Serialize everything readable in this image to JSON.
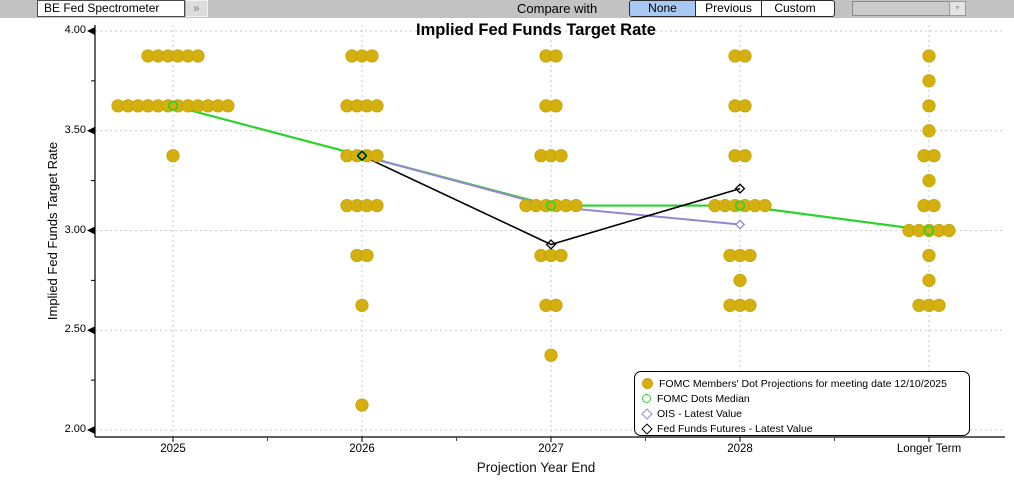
{
  "toolbar": {
    "app_button": "BE Fed Spectrometer",
    "expand_icon": "»",
    "compare_label": "Compare with",
    "compare_options": [
      "None",
      "Previous",
      "Custom"
    ],
    "compare_selected": "None",
    "compare_dropdown_value": "",
    "dropdown_arrow": "▼"
  },
  "chart_data": {
    "type": "scatter",
    "title": "Implied Fed Funds Target Rate",
    "xlabel": "Projection Year End",
    "ylabel": "Implied Fed Funds Target Rate",
    "ylim": [
      2.0,
      4.0
    ],
    "grid": "dotted major horizontal gridlines and dotted vertical category gridlines",
    "legend_position": "bottom-right inside plot",
    "categories": [
      "2025",
      "2026",
      "2027",
      "2028",
      "Longer Term"
    ],
    "y_axis": {
      "major": [
        {
          "label": "4.00",
          "value": 4.0
        },
        {
          "label": "3.50",
          "value": 3.5
        },
        {
          "label": "3.00",
          "value": 3.0
        },
        {
          "label": "2.50",
          "value": 2.5
        },
        {
          "label": "2.00",
          "value": 2.0
        }
      ],
      "minor": [
        3.75,
        3.25,
        2.75,
        2.25
      ]
    },
    "dot_columns": [
      {
        "category": "2025",
        "median": 3.625,
        "rows": [
          {
            "rate": 3.875,
            "count": 6
          },
          {
            "rate": 3.625,
            "count": 12
          },
          {
            "rate": 3.375,
            "count": 1
          }
        ]
      },
      {
        "category": "2026",
        "median": 3.375,
        "rows": [
          {
            "rate": 3.875,
            "count": 3
          },
          {
            "rate": 3.625,
            "count": 4
          },
          {
            "rate": 3.375,
            "count": 4
          },
          {
            "rate": 3.125,
            "count": 4
          },
          {
            "rate": 2.875,
            "count": 2
          },
          {
            "rate": 2.625,
            "count": 1
          },
          {
            "rate": 2.125,
            "count": 1
          }
        ]
      },
      {
        "category": "2027",
        "median": 3.125,
        "rows": [
          {
            "rate": 3.875,
            "count": 2
          },
          {
            "rate": 3.625,
            "count": 2
          },
          {
            "rate": 3.375,
            "count": 3
          },
          {
            "rate": 3.125,
            "count": 6
          },
          {
            "rate": 2.875,
            "count": 3
          },
          {
            "rate": 2.625,
            "count": 2
          },
          {
            "rate": 2.375,
            "count": 1
          }
        ]
      },
      {
        "category": "2028",
        "median": 3.125,
        "rows": [
          {
            "rate": 3.875,
            "count": 2
          },
          {
            "rate": 3.625,
            "count": 2
          },
          {
            "rate": 3.375,
            "count": 2
          },
          {
            "rate": 3.125,
            "count": 6
          },
          {
            "rate": 2.875,
            "count": 3
          },
          {
            "rate": 2.75,
            "count": 1
          },
          {
            "rate": 2.625,
            "count": 3
          }
        ]
      },
      {
        "category": "Longer Term",
        "median": 3.0,
        "rows": [
          {
            "rate": 3.875,
            "count": 1
          },
          {
            "rate": 3.75,
            "count": 1
          },
          {
            "rate": 3.625,
            "count": 1
          },
          {
            "rate": 3.5,
            "count": 1
          },
          {
            "rate": 3.375,
            "count": 2
          },
          {
            "rate": 3.25,
            "count": 1
          },
          {
            "rate": 3.125,
            "count": 2
          },
          {
            "rate": 3.0,
            "count": 5
          },
          {
            "rate": 2.875,
            "count": 1
          },
          {
            "rate": 2.75,
            "count": 1
          },
          {
            "rate": 2.625,
            "count": 3
          }
        ]
      }
    ],
    "series": [
      {
        "name": "FOMC Dots Median",
        "type": "line",
        "color": "#2bd32b",
        "categories": [
          "2025",
          "2026",
          "2027",
          "2028",
          "Longer Term"
        ],
        "values": [
          3.625,
          3.375,
          3.125,
          3.125,
          3.0
        ]
      },
      {
        "name": "OIS - Latest Value",
        "type": "line",
        "color": "#9486cf",
        "categories": [
          "2026",
          "2027",
          "2028"
        ],
        "values": [
          3.375,
          3.12,
          3.03
        ]
      },
      {
        "name": "Fed Funds Futures - Latest Value",
        "type": "line",
        "color": "#000000",
        "categories": [
          "2026",
          "2027",
          "2028"
        ],
        "values": [
          3.375,
          2.93,
          3.21
        ]
      }
    ],
    "colors": {
      "dot": "#d3b00e",
      "dot_edge": "#c4a30b",
      "median_green": "#2bd32b",
      "ois_purple": "#9486cf",
      "futures_black": "#000000",
      "gridline": "#c9c9c9",
      "selected_compare_blue": "#a9c9f5"
    },
    "legend": [
      {
        "marker": "filled-circle",
        "color": "#d3b00e",
        "label": "FOMC Members' Dot Projections for meeting date 12/10/2025"
      },
      {
        "marker": "open-circle",
        "color": "#2bd32b",
        "label": "FOMC Dots Median"
      },
      {
        "marker": "open-diamond",
        "color": "#9486cf",
        "label": "OIS - Latest Value"
      },
      {
        "marker": "open-diamond",
        "color": "#000000",
        "label": "Fed Funds Futures - Latest Value"
      }
    ]
  }
}
